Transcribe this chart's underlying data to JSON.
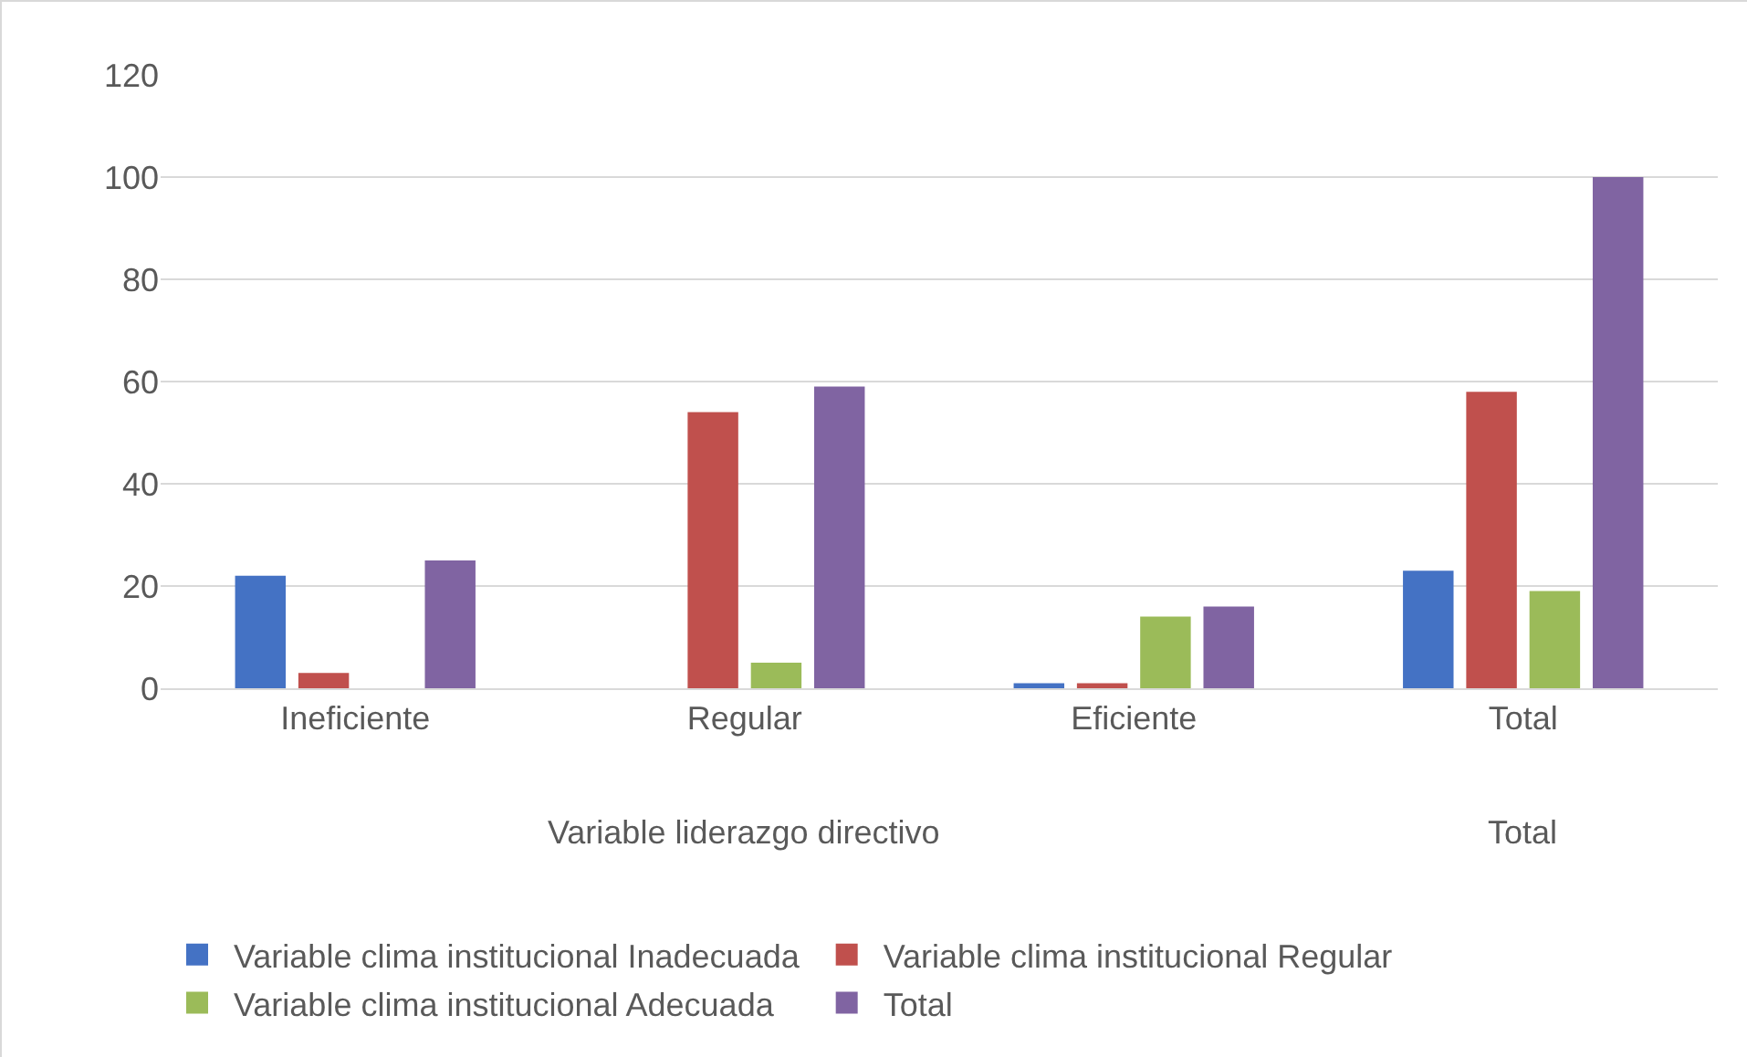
{
  "chart_data": {
    "type": "bar",
    "categories": [
      "Ineficiente",
      "Regular",
      "Eficiente",
      "Total"
    ],
    "xlabel": "Variable liderazgo directivo",
    "annotations": [
      "Total"
    ],
    "series": [
      {
        "name": "Variable clima institucional Inadecuada",
        "color": "#4472c4",
        "values": [
          22,
          0,
          1,
          23
        ]
      },
      {
        "name": "Variable clima institucional Regular",
        "color": "#c0504d",
        "values": [
          3,
          54,
          1,
          58
        ]
      },
      {
        "name": "Variable clima institucional Adecuada",
        "color": "#9bbb59",
        "values": [
          0,
          5,
          14,
          19
        ]
      },
      {
        "name": "Total",
        "color": "#8064a2",
        "values": [
          25,
          59,
          16,
          100
        ]
      }
    ],
    "ylim": [
      0,
      120
    ],
    "yticks": [
      0,
      20,
      40,
      60,
      80,
      100,
      120
    ],
    "grid": "y",
    "legend": "bottom"
  }
}
